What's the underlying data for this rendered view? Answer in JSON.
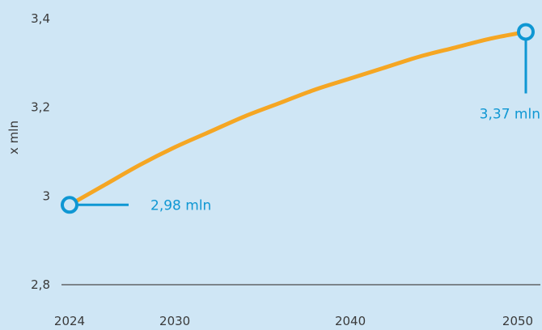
{
  "chart_data": {
    "type": "line",
    "title": "",
    "xlabel": "",
    "ylabel": "x mln",
    "xlim": [
      2024,
      2050
    ],
    "ylim": [
      2.8,
      3.4
    ],
    "x_ticks": [
      2024,
      2030,
      2040,
      2050
    ],
    "x_tick_labels": [
      "2024",
      "2030",
      "2040",
      "2050"
    ],
    "y_ticks": [
      2.8,
      3.0,
      3.2,
      3.4
    ],
    "y_tick_labels": [
      "2,8",
      "3",
      "3,2",
      "3,4"
    ],
    "grid": false,
    "series": [
      {
        "x": [
          2024,
          2026,
          2028,
          2030,
          2032,
          2034,
          2036,
          2038,
          2040,
          2042,
          2044,
          2046,
          2048,
          2050
        ],
        "values": [
          2.98,
          3.025,
          3.07,
          3.11,
          3.145,
          3.18,
          3.21,
          3.24,
          3.265,
          3.29,
          3.315,
          3.335,
          3.355,
          3.37
        ],
        "color": "#f5a623"
      }
    ],
    "annotations": [
      {
        "label": "2,98 mln",
        "x": 2024,
        "y": 2.98
      },
      {
        "label": "3,37 mln",
        "x": 2050,
        "y": 3.37
      }
    ],
    "colors": {
      "background": "#cfe6f5",
      "line": "#f5a623",
      "marker": "#0f97d3",
      "axis": "#4a4a4a",
      "text": "#3a3a3a"
    }
  }
}
